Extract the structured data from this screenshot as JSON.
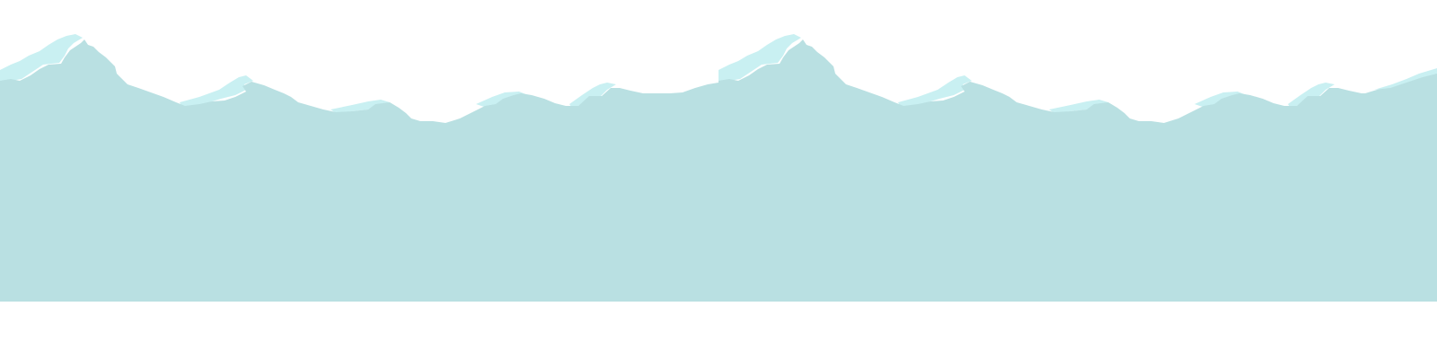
{
  "graphic": {
    "subject": "repeating-mountain-ridge-band",
    "colors": {
      "background": "#ffffff",
      "mountain_fill": "#b9e0e2",
      "snow_highlight": "#c9f0f2"
    }
  }
}
